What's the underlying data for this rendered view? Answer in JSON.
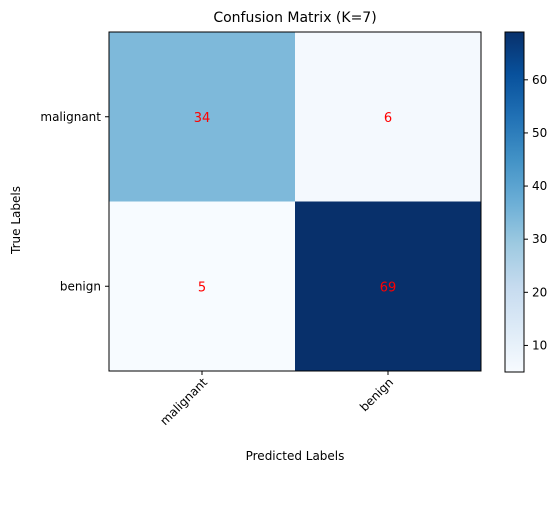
{
  "chart_data": {
    "type": "heatmap",
    "title": "Confusion Matrix (K=7)",
    "xlabel": "Predicted Labels",
    "ylabel": "True Labels",
    "x_categories": [
      "malignant",
      "benign"
    ],
    "y_categories": [
      "malignant",
      "benign"
    ],
    "values": [
      [
        34,
        6
      ],
      [
        5,
        69
      ]
    ],
    "colormap": "Blues",
    "annotation_color": "#ff0000",
    "colorbar": {
      "vmin": 5,
      "vmax": 69,
      "ticks": [
        10,
        20,
        30,
        40,
        50,
        60
      ]
    }
  }
}
